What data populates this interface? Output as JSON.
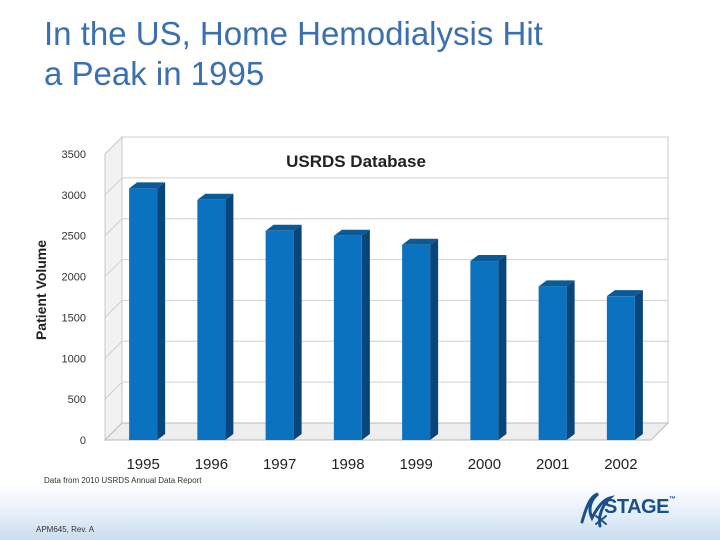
{
  "slide": {
    "title_line1": "In the US, Home Hemodialysis Hit",
    "title_line2": "a Peak in 1995",
    "source_note": "Data from 2010 USRDS Annual Data Report",
    "footer_code": "APM645, Rev. A",
    "logo_text": "STAGE",
    "logo_mark": "™"
  },
  "colors": {
    "title": "#3a6fb0",
    "bar_front": "#0b72bf",
    "bar_top": "#0a5a97",
    "bar_side": "#07457a",
    "logo": "#1b4f8a"
  },
  "chart_data": {
    "type": "bar",
    "title": "USRDS Database",
    "xlabel": "",
    "ylabel": "Patient Volume",
    "categories": [
      "1995",
      "1996",
      "1997",
      "1998",
      "1999",
      "2000",
      "2001",
      "2002"
    ],
    "values": [
      3080,
      2940,
      2560,
      2500,
      2390,
      2190,
      1880,
      1760
    ],
    "ylim": [
      0,
      3500
    ],
    "yticks": [
      0,
      500,
      1000,
      1500,
      2000,
      2500,
      3000,
      3500
    ],
    "grid": true,
    "legend": "none",
    "style": "3d"
  }
}
